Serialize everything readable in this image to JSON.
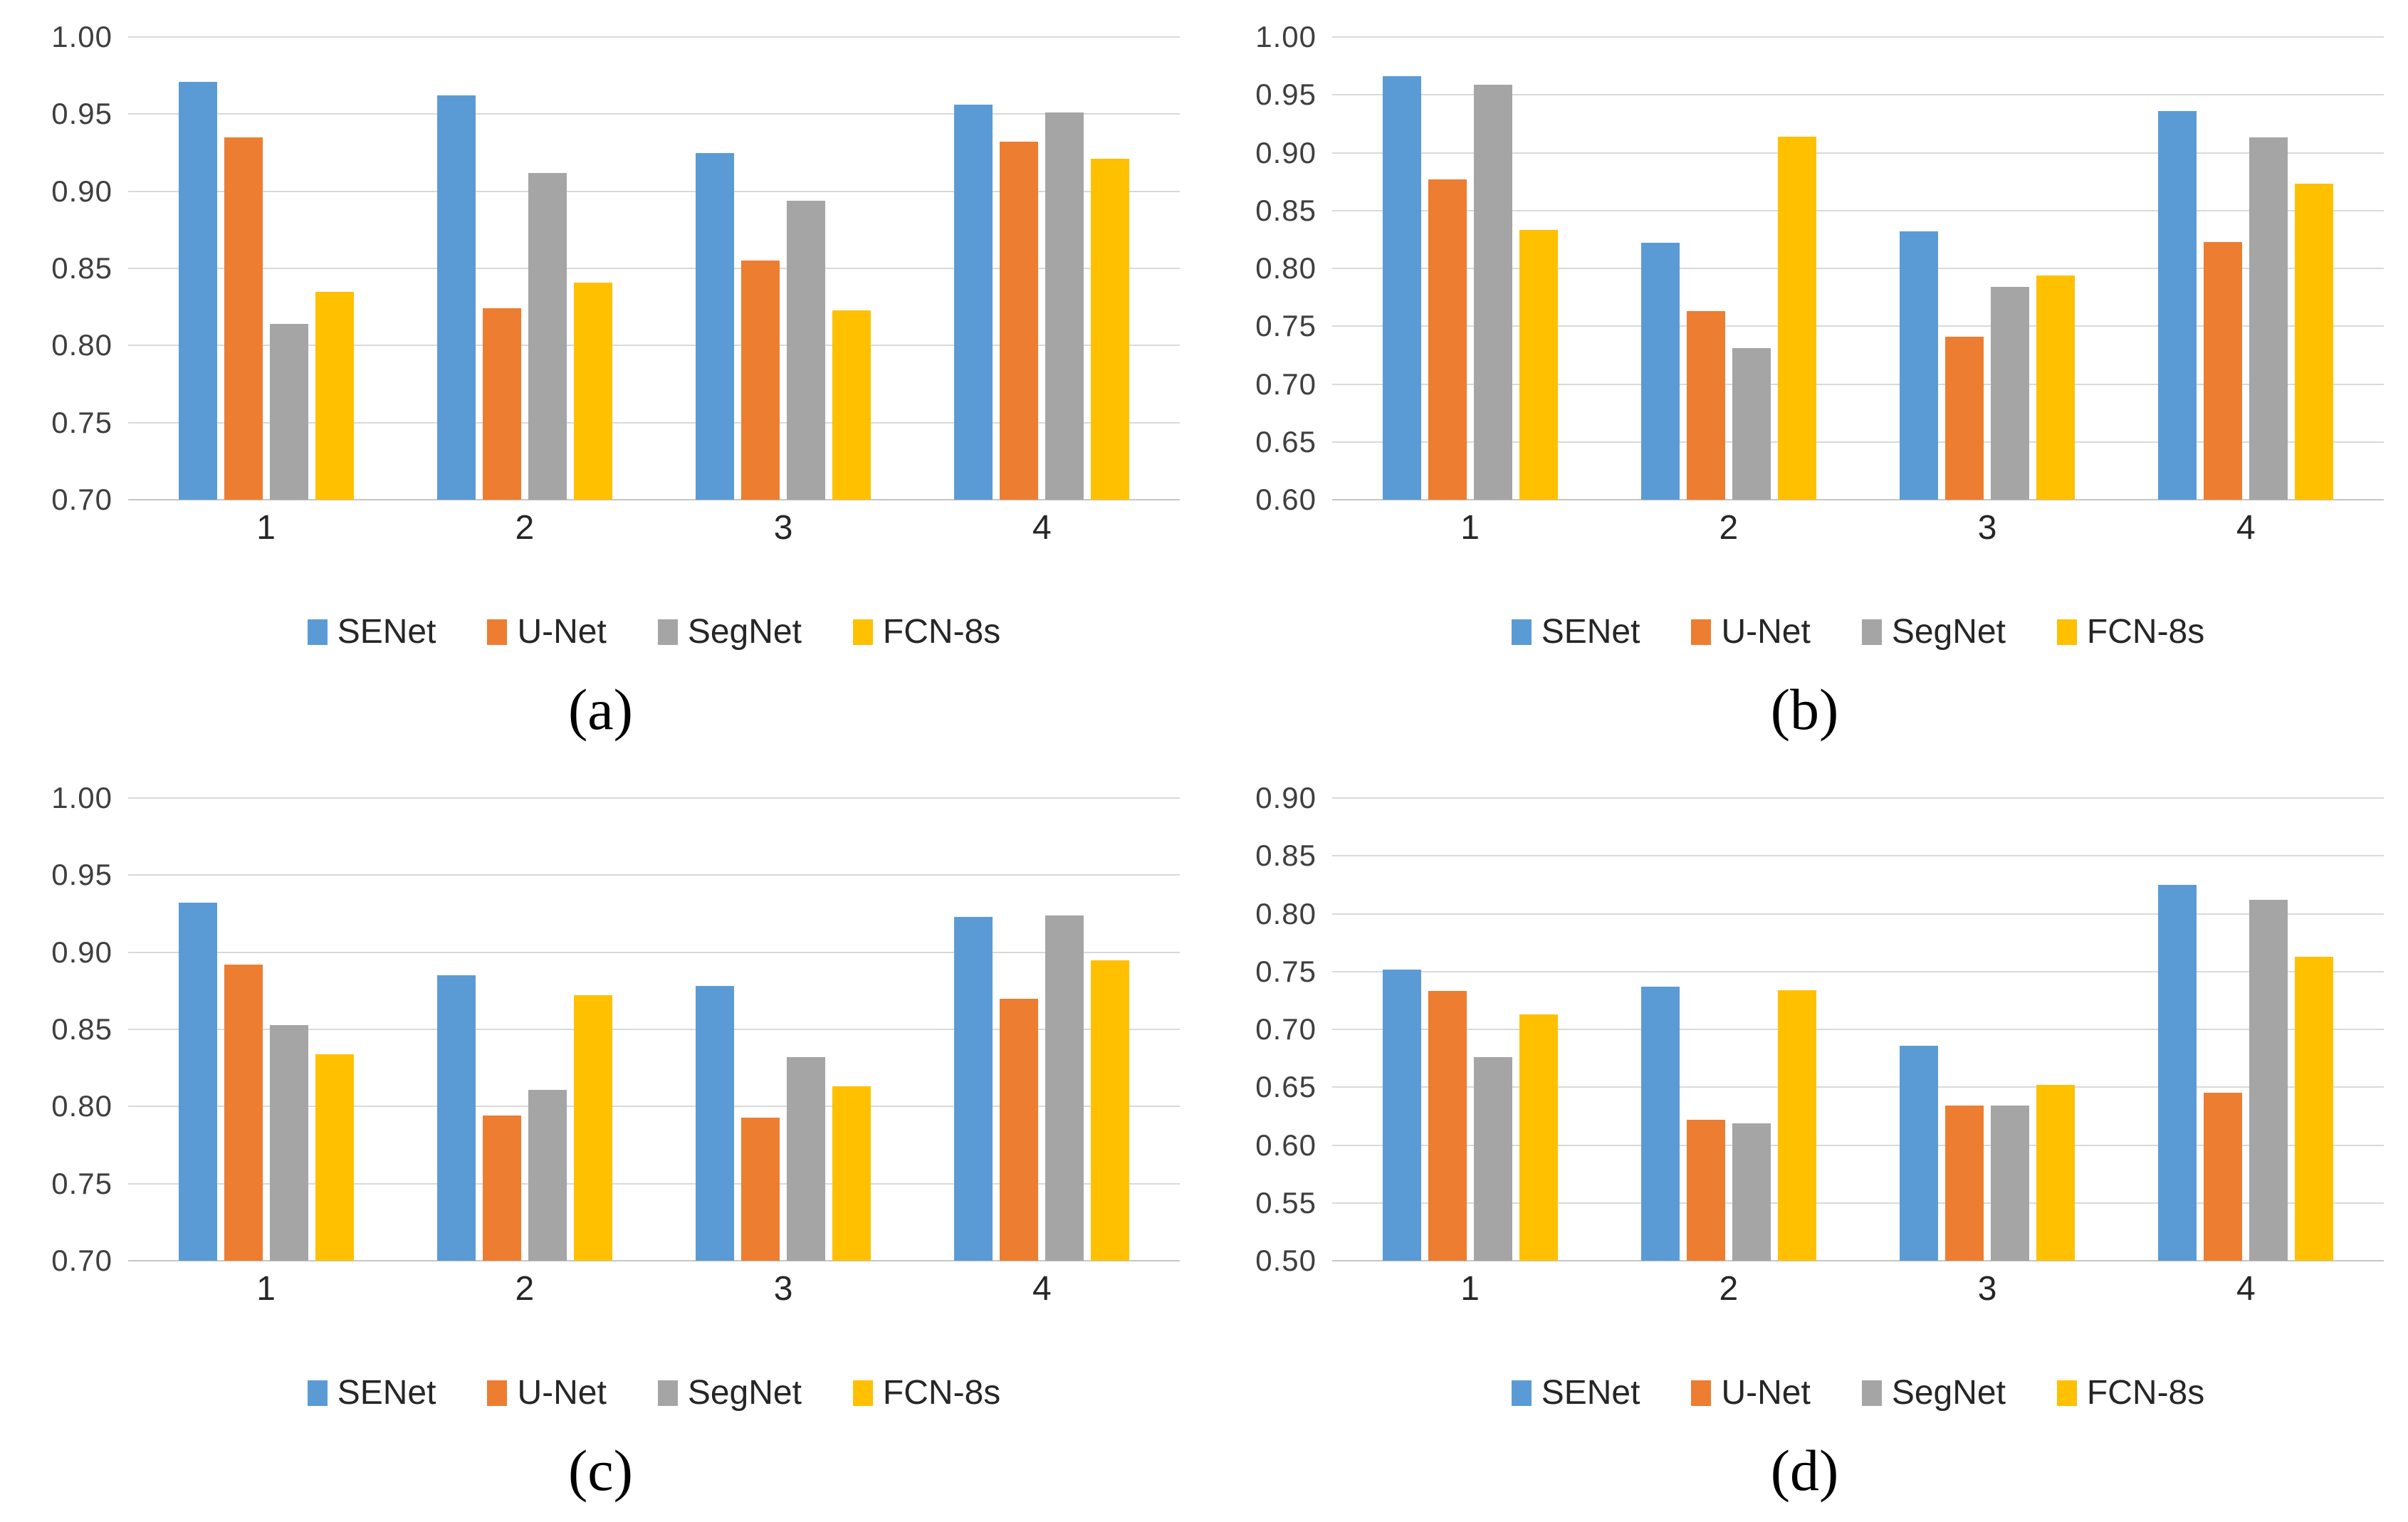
{
  "figure": {
    "background": "#FFFFFF",
    "gridline_color": "#D9D9D9",
    "axis_line_color": "#C6C6C6",
    "text_color": "#3F3F3F",
    "series_colors": {
      "SENet": "#5B9BD5",
      "U-Net": "#ED7D31",
      "SegNet": "#A5A5A5",
      "FCN-8s": "#FFC000"
    }
  },
  "chart_data": [
    {
      "type": "bar",
      "caption": "(a)",
      "title": "",
      "xlabel": "",
      "ylabel": "",
      "categories": [
        "1",
        "2",
        "3",
        "4"
      ],
      "ylim": [
        0.7,
        1.0
      ],
      "ytick_step": 0.05,
      "tick_decimals": 2,
      "grid": true,
      "legend_position": "bottom",
      "series": [
        {
          "name": "SENet",
          "values": [
            0.971,
            0.962,
            0.925,
            0.956
          ]
        },
        {
          "name": "U-Net",
          "values": [
            0.935,
            0.824,
            0.855,
            0.932
          ]
        },
        {
          "name": "SegNet",
          "values": [
            0.814,
            0.912,
            0.894,
            0.951
          ]
        },
        {
          "name": "FCN-8s",
          "values": [
            0.835,
            0.841,
            0.823,
            0.921
          ]
        }
      ]
    },
    {
      "type": "bar",
      "caption": "(b)",
      "title": "",
      "xlabel": "",
      "ylabel": "",
      "categories": [
        "1",
        "2",
        "3",
        "4"
      ],
      "ylim": [
        0.6,
        1.0
      ],
      "ytick_step": 0.05,
      "tick_decimals": 2,
      "grid": true,
      "legend_position": "bottom",
      "series": [
        {
          "name": "SENet",
          "values": [
            0.966,
            0.822,
            0.832,
            0.936
          ]
        },
        {
          "name": "U-Net",
          "values": [
            0.877,
            0.763,
            0.741,
            0.823
          ]
        },
        {
          "name": "SegNet",
          "values": [
            0.959,
            0.731,
            0.784,
            0.913
          ]
        },
        {
          "name": "FCN-8s",
          "values": [
            0.833,
            0.914,
            0.794,
            0.873
          ]
        }
      ]
    },
    {
      "type": "bar",
      "caption": "(c)",
      "title": "",
      "xlabel": "",
      "ylabel": "",
      "categories": [
        "1",
        "2",
        "3",
        "4"
      ],
      "ylim": [
        0.7,
        1.0
      ],
      "ytick_step": 0.05,
      "tick_decimals": 2,
      "grid": true,
      "legend_position": "bottom",
      "series": [
        {
          "name": "SENet",
          "values": [
            0.932,
            0.885,
            0.878,
            0.923
          ]
        },
        {
          "name": "U-Net",
          "values": [
            0.892,
            0.794,
            0.793,
            0.87
          ]
        },
        {
          "name": "SegNet",
          "values": [
            0.853,
            0.811,
            0.832,
            0.924
          ]
        },
        {
          "name": "FCN-8s",
          "values": [
            0.834,
            0.872,
            0.813,
            0.895
          ]
        }
      ]
    },
    {
      "type": "bar",
      "caption": "(d)",
      "title": "",
      "xlabel": "",
      "ylabel": "",
      "categories": [
        "1",
        "2",
        "3",
        "4"
      ],
      "ylim": [
        0.5,
        0.9
      ],
      "ytick_step": 0.05,
      "tick_decimals": 2,
      "grid": true,
      "legend_position": "bottom",
      "series": [
        {
          "name": "SENet",
          "values": [
            0.752,
            0.737,
            0.686,
            0.825
          ]
        },
        {
          "name": "U-Net",
          "values": [
            0.733,
            0.622,
            0.634,
            0.645
          ]
        },
        {
          "name": "SegNet",
          "values": [
            0.676,
            0.619,
            0.634,
            0.812
          ]
        },
        {
          "name": "FCN-8s",
          "values": [
            0.713,
            0.734,
            0.652,
            0.763
          ]
        }
      ]
    }
  ]
}
